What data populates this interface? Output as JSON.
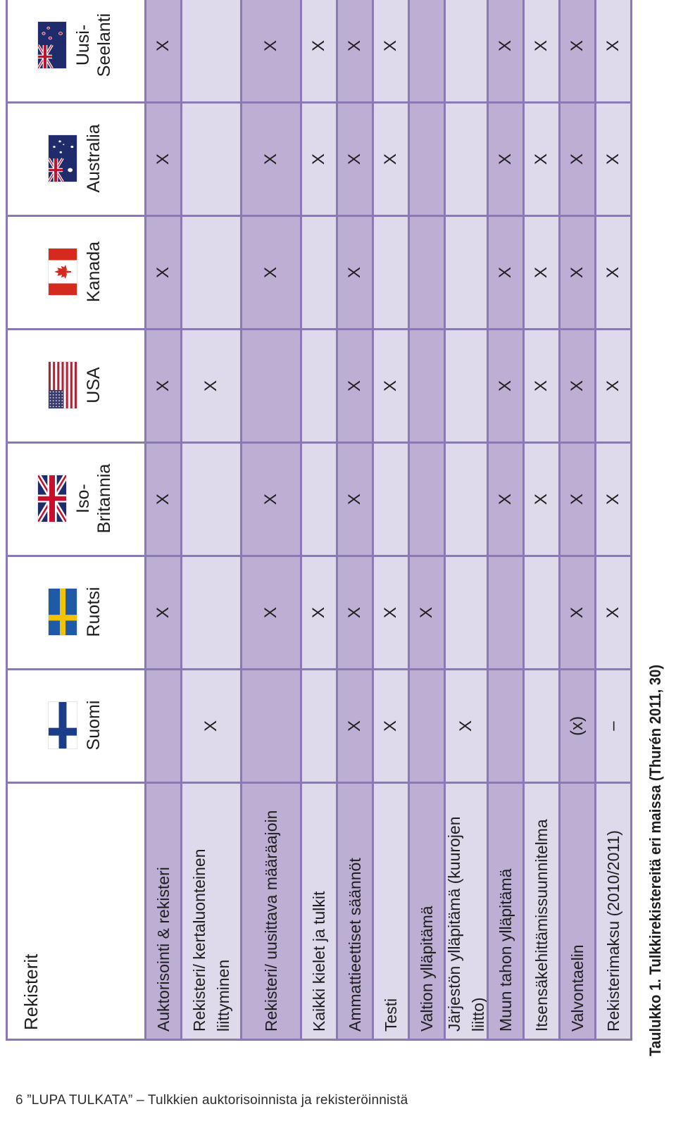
{
  "table": {
    "header_label": "Rekisterit",
    "countries": [
      {
        "name": "Suomi",
        "flag": "finland-flag"
      },
      {
        "name": "Ruotsi",
        "flag": "sweden-flag"
      },
      {
        "name": "Iso-Britannia",
        "flag": "uk-flag"
      },
      {
        "name": "USA",
        "flag": "usa-flag"
      },
      {
        "name": "Kanada",
        "flag": "canada-flag"
      },
      {
        "name": "Australia",
        "flag": "australia-flag"
      },
      {
        "name": "Uusi-Seelanti",
        "flag": "new-zealand-flag"
      }
    ],
    "rows": [
      {
        "label": "Auktorisointi & rekisteri",
        "values": [
          "",
          "X",
          "X",
          "X",
          "X",
          "X",
          "X"
        ]
      },
      {
        "label": "Rekisteri/ kertaluonteinen liittyminen",
        "values": [
          "X",
          "",
          "",
          "X",
          "",
          "",
          ""
        ]
      },
      {
        "label": "Rekisteri/ uusittava määräajoin",
        "values": [
          "",
          "X",
          "X",
          "",
          "X",
          "X",
          "X"
        ]
      },
      {
        "label": "Kaikki kielet ja tulkit",
        "values": [
          "",
          "X",
          "",
          "",
          "",
          "X",
          "X"
        ]
      },
      {
        "label": "Ammattieettiset säännöt",
        "values": [
          "X",
          "X",
          "X",
          "X",
          "X",
          "X",
          "X"
        ]
      },
      {
        "label": "Testi",
        "values": [
          "X",
          "X",
          "",
          "X",
          "",
          "X",
          "X"
        ]
      },
      {
        "label": "Valtion ylläpitämä",
        "values": [
          "",
          "X",
          "",
          "",
          "",
          "",
          ""
        ]
      },
      {
        "label": "Järjestön ylläpitämä (kuurojen liitto)",
        "values": [
          "X",
          "",
          "",
          "",
          "",
          "",
          ""
        ]
      },
      {
        "label": "Muun tahon ylläpitämä",
        "values": [
          "",
          "",
          "X",
          "X",
          "X",
          "X",
          "X"
        ]
      },
      {
        "label": "Itsensäkehittämissuunnitelma",
        "values": [
          "",
          "",
          "X",
          "X",
          "X",
          "X",
          "X"
        ]
      },
      {
        "label": "Valvontaelin",
        "values": [
          "(x)",
          "X",
          "X",
          "X",
          "X",
          "X",
          "X"
        ]
      },
      {
        "label": "Rekisterimaksu (2010/2011)",
        "values": [
          "–",
          "X",
          "X",
          "X",
          "X",
          "X",
          "X"
        ]
      }
    ]
  },
  "caption": "Taulukko 1. Tulkkirekistereitä eri maissa (Thurén 2011, 30)",
  "footer": {
    "page_number": "6",
    "text": "”LUPA TULKATA” – Tulkkien auktorisoinnista ja rekisteröinnistä"
  },
  "colors": {
    "row_dark": "#bdafd4",
    "row_light": "#dedaeb",
    "border": "#8b79b5"
  }
}
